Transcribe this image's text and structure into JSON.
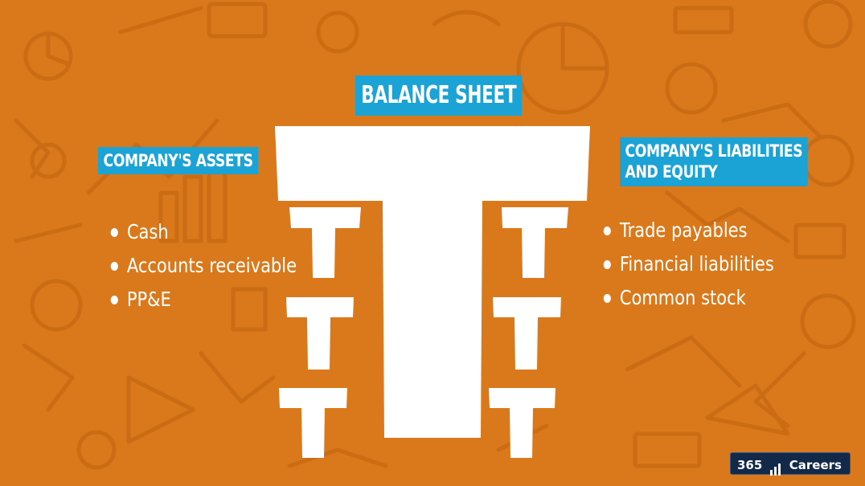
{
  "title": "BALANCE SHEET",
  "left_column": {
    "title": "COMPANY'S ASSETS",
    "items": [
      "Cash",
      "Accounts receivable",
      "PP&E"
    ]
  },
  "right_column": {
    "title_line1": "COMPANY'S LIABILITIES",
    "title_line2": "AND EQUITY",
    "items": [
      "Trade payables",
      "Financial liabilities",
      "Common stock"
    ]
  },
  "brand": {
    "number": "365",
    "name": "Careers"
  },
  "colors": {
    "background": "#d9791c",
    "label_background": "#1ba3d6",
    "text": "#ffffff",
    "brand_background": "#12294a"
  },
  "icons": {
    "central_t": "large-t-shape",
    "side_ts": "small-t-shapes",
    "bullet": "white-dot"
  }
}
